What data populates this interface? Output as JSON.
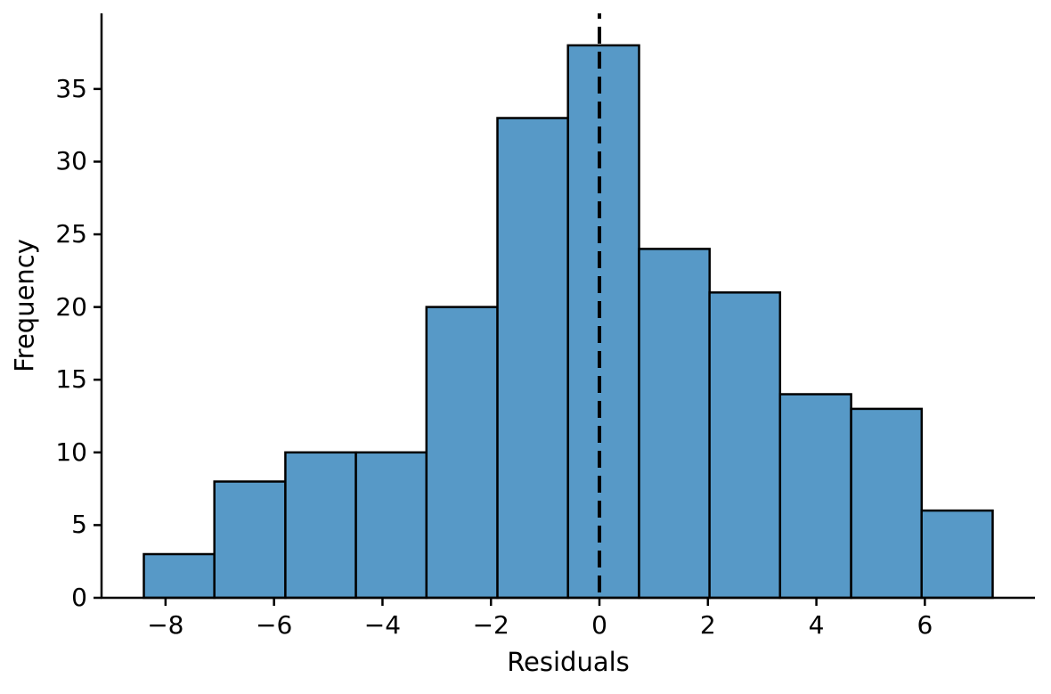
{
  "chart_data": {
    "type": "histogram",
    "title": "",
    "xlabel": "Residuals",
    "ylabel": "Frequency",
    "bin_edges": [
      -8.4,
      -7.1,
      -5.79,
      -4.49,
      -3.19,
      -1.88,
      -0.58,
      0.73,
      2.03,
      3.33,
      4.64,
      5.94,
      7.25
    ],
    "counts": [
      3,
      8,
      10,
      10,
      20,
      33,
      38,
      24,
      21,
      14,
      13,
      6
    ],
    "n_total": 200,
    "vline_x": 0,
    "vline_style": "dashed",
    "xlim": [
      -9.18,
      8.03
    ],
    "ylim": [
      0,
      40.2
    ],
    "x_ticks": {
      "values": [
        -8,
        -6,
        -4,
        -2,
        0,
        2,
        4,
        6
      ],
      "labels": [
        "−8",
        "−6",
        "−4",
        "−2",
        "0",
        "2",
        "4",
        "6"
      ]
    },
    "y_ticks": {
      "values": [
        0,
        5,
        10,
        15,
        20,
        25,
        30,
        35
      ],
      "labels": [
        "0",
        "5",
        "10",
        "15",
        "20",
        "25",
        "30",
        "35"
      ]
    },
    "legend": "none",
    "grid": false,
    "spines": [
      "left",
      "bottom"
    ],
    "colors": {
      "bar_fill": "#5799C7",
      "bar_edge": "#000000",
      "vline": "#000000",
      "axis": "#000000",
      "text": "#000000",
      "background": "#FFFFFF"
    }
  }
}
